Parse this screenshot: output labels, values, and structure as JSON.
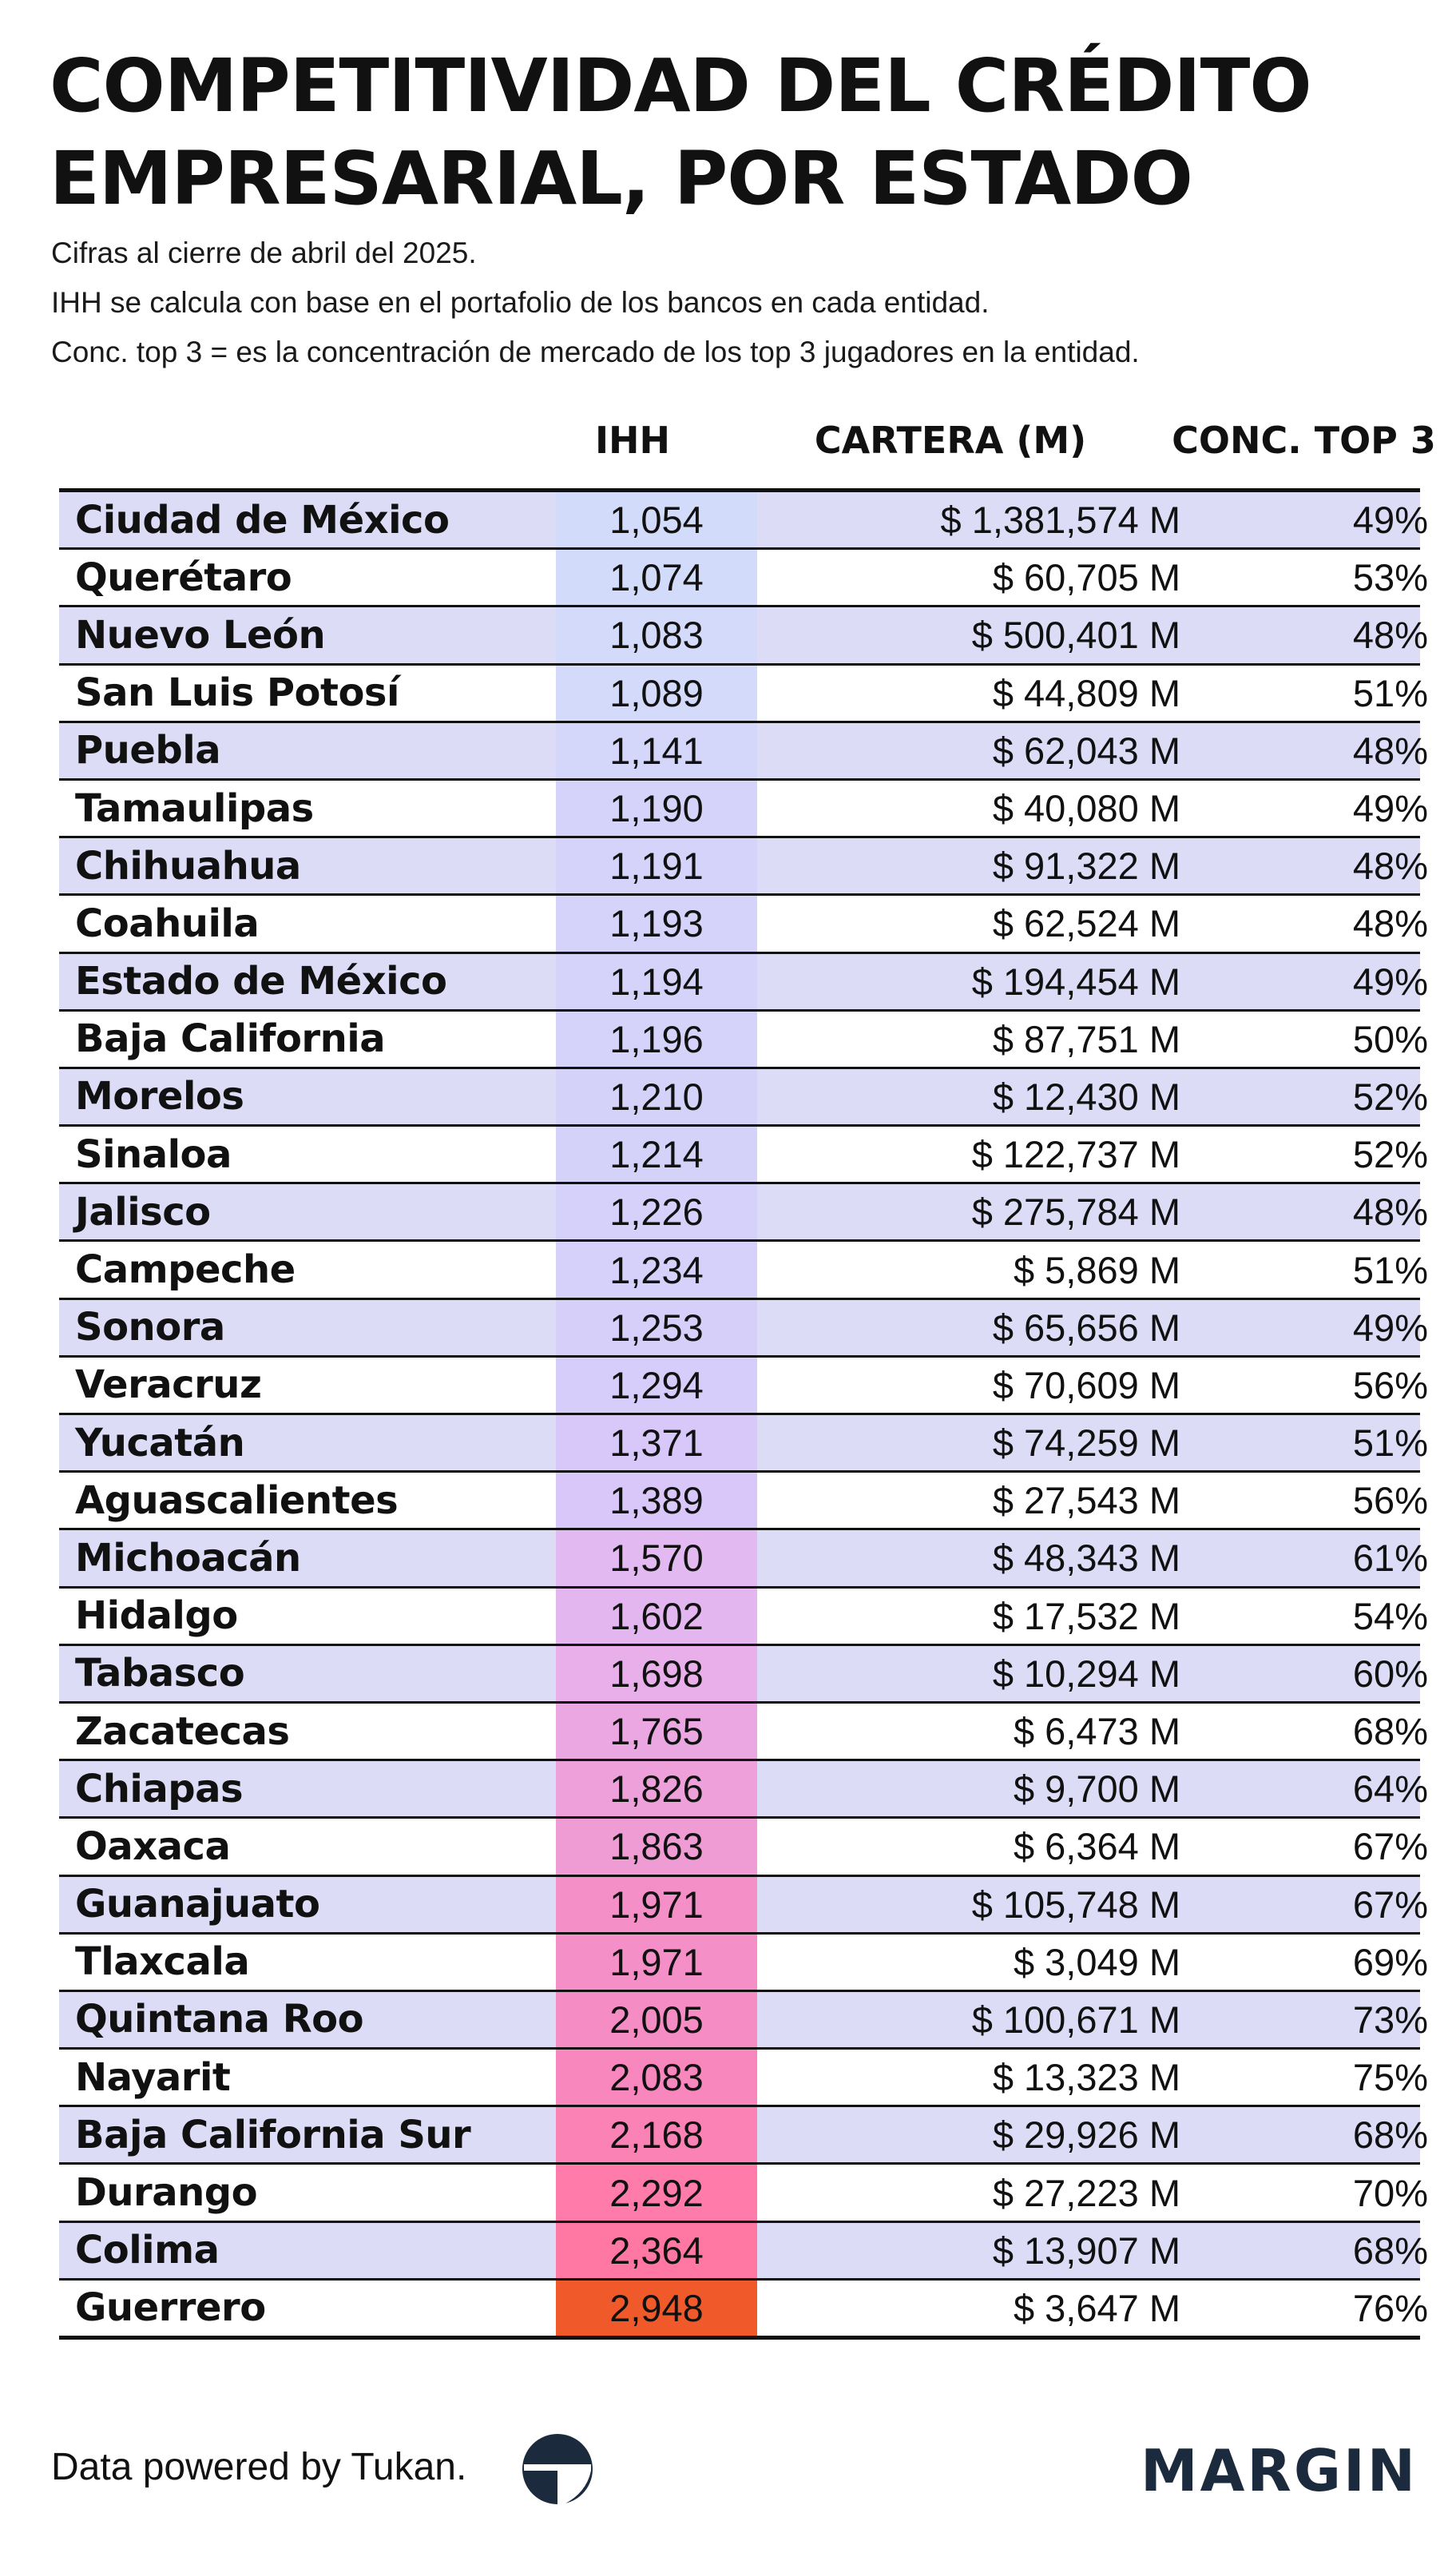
{
  "title": "COMPETITIVIDAD DEL CRÉDITO EMPRESARIAL, POR ESTADO",
  "subtitles": [
    "Cifras al cierre de abril del 2025.",
    "IHH se calcula con base en el portafolio de los bancos en cada entidad.",
    "Conc. top 3 = es la concentración de mercado de los top 3 jugadores en la entidad."
  ],
  "chart_data": {
    "type": "table",
    "columns": [
      "IHH",
      "CARTERA (M)",
      "CONC. TOP 3"
    ],
    "rows": [
      {
        "estado": "Ciudad de México",
        "ihh": 1054,
        "ihh_label": "1,054",
        "cartera": "$ 1,381,574 M",
        "conc": "49%"
      },
      {
        "estado": "Querétaro",
        "ihh": 1074,
        "ihh_label": "1,074",
        "cartera": "$ 60,705 M",
        "conc": "53%"
      },
      {
        "estado": "Nuevo León",
        "ihh": 1083,
        "ihh_label": "1,083",
        "cartera": "$ 500,401 M",
        "conc": "48%"
      },
      {
        "estado": "San Luis Potosí",
        "ihh": 1089,
        "ihh_label": "1,089",
        "cartera": "$ 44,809 M",
        "conc": "51%"
      },
      {
        "estado": "Puebla",
        "ihh": 1141,
        "ihh_label": "1,141",
        "cartera": "$ 62,043 M",
        "conc": "48%"
      },
      {
        "estado": "Tamaulipas",
        "ihh": 1190,
        "ihh_label": "1,190",
        "cartera": "$ 40,080 M",
        "conc": "49%"
      },
      {
        "estado": "Chihuahua",
        "ihh": 1191,
        "ihh_label": "1,191",
        "cartera": "$ 91,322 M",
        "conc": "48%"
      },
      {
        "estado": "Coahuila",
        "ihh": 1193,
        "ihh_label": "1,193",
        "cartera": "$ 62,524 M",
        "conc": "48%"
      },
      {
        "estado": "Estado de México",
        "ihh": 1194,
        "ihh_label": "1,194",
        "cartera": "$ 194,454 M",
        "conc": "49%"
      },
      {
        "estado": "Baja California",
        "ihh": 1196,
        "ihh_label": "1,196",
        "cartera": "$ 87,751 M",
        "conc": "50%"
      },
      {
        "estado": "Morelos",
        "ihh": 1210,
        "ihh_label": "1,210",
        "cartera": "$ 12,430 M",
        "conc": "52%"
      },
      {
        "estado": "Sinaloa",
        "ihh": 1214,
        "ihh_label": "1,214",
        "cartera": "$ 122,737 M",
        "conc": "52%"
      },
      {
        "estado": "Jalisco",
        "ihh": 1226,
        "ihh_label": "1,226",
        "cartera": "$ 275,784 M",
        "conc": "48%"
      },
      {
        "estado": "Campeche",
        "ihh": 1234,
        "ihh_label": "1,234",
        "cartera": "$ 5,869 M",
        "conc": "51%"
      },
      {
        "estado": "Sonora",
        "ihh": 1253,
        "ihh_label": "1,253",
        "cartera": "$ 65,656 M",
        "conc": "49%"
      },
      {
        "estado": "Veracruz",
        "ihh": 1294,
        "ihh_label": "1,294",
        "cartera": "$ 70,609 M",
        "conc": "56%"
      },
      {
        "estado": "Yucatán",
        "ihh": 1371,
        "ihh_label": "1,371",
        "cartera": "$ 74,259 M",
        "conc": "51%"
      },
      {
        "estado": "Aguascalientes",
        "ihh": 1389,
        "ihh_label": "1,389",
        "cartera": "$ 27,543 M",
        "conc": "56%"
      },
      {
        "estado": "Michoacán",
        "ihh": 1570,
        "ihh_label": "1,570",
        "cartera": "$ 48,343 M",
        "conc": "61%"
      },
      {
        "estado": "Hidalgo",
        "ihh": 1602,
        "ihh_label": "1,602",
        "cartera": "$ 17,532 M",
        "conc": "54%"
      },
      {
        "estado": "Tabasco",
        "ihh": 1698,
        "ihh_label": "1,698",
        "cartera": "$ 10,294 M",
        "conc": "60%"
      },
      {
        "estado": "Zacatecas",
        "ihh": 1765,
        "ihh_label": "1,765",
        "cartera": "$ 6,473 M",
        "conc": "68%"
      },
      {
        "estado": "Chiapas",
        "ihh": 1826,
        "ihh_label": "1,826",
        "cartera": "$ 9,700 M",
        "conc": "64%"
      },
      {
        "estado": "Oaxaca",
        "ihh": 1863,
        "ihh_label": "1,863",
        "cartera": "$ 6,364 M",
        "conc": "67%"
      },
      {
        "estado": "Guanajuato",
        "ihh": 1971,
        "ihh_label": "1,971",
        "cartera": "$ 105,748 M",
        "conc": "67%"
      },
      {
        "estado": "Tlaxcala",
        "ihh": 1971,
        "ihh_label": "1,971",
        "cartera": "$ 3,049 M",
        "conc": "69%"
      },
      {
        "estado": "Quintana Roo",
        "ihh": 2005,
        "ihh_label": "2,005",
        "cartera": "$ 100,671 M",
        "conc": "73%"
      },
      {
        "estado": "Nayarit",
        "ihh": 2083,
        "ihh_label": "2,083",
        "cartera": "$ 13,323 M",
        "conc": "75%"
      },
      {
        "estado": "Baja California Sur",
        "ihh": 2168,
        "ihh_label": "2,168",
        "cartera": "$ 29,926 M",
        "conc": "68%"
      },
      {
        "estado": "Durango",
        "ihh": 2292,
        "ihh_label": "2,292",
        "cartera": "$ 27,223 M",
        "conc": "70%"
      },
      {
        "estado": "Colima",
        "ihh": 2364,
        "ihh_label": "2,364",
        "cartera": "$ 13,907 M",
        "conc": "68%"
      },
      {
        "estado": "Guerrero",
        "ihh": 2948,
        "ihh_label": "2,948",
        "cartera": "$ 3,647 M",
        "conc": "76%"
      }
    ],
    "ihh_color_scale": [
      "#d2dcfa",
      "#d8c8fa",
      "#e8b0ec",
      "#f58cc4",
      "#ff7aa8",
      "#ff6a90",
      "#f05a2a"
    ]
  },
  "footer": {
    "credit": "Data powered by Tukan.",
    "logo_icon": "tukan-logo-icon",
    "brand": "MARGIN",
    "brand_color": "#1b2a3d"
  }
}
